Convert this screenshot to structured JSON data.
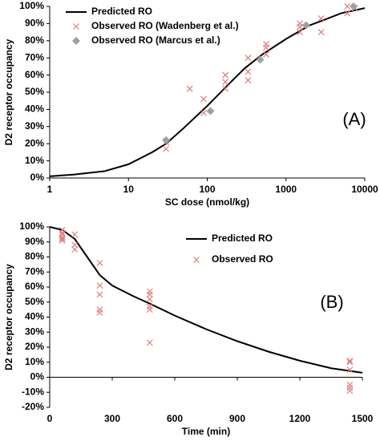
{
  "chart_data": [
    {
      "type": "line",
      "xlog": true,
      "xlabel": "SC dose (nmol/kg)",
      "ylabel": "D2 receptor occupancy",
      "annotation": "(A)",
      "xlim": [
        1,
        10000
      ],
      "xticks": [
        1,
        10,
        100,
        1000,
        10000
      ],
      "ylim": [
        0,
        100
      ],
      "yticks": [
        {
          "value": 0,
          "label": "0%"
        },
        {
          "value": 10,
          "label": "10%"
        },
        {
          "value": 20,
          "label": "20%"
        },
        {
          "value": 30,
          "label": "30%"
        },
        {
          "value": 40,
          "label": "40%"
        },
        {
          "value": 50,
          "label": "50%"
        },
        {
          "value": 60,
          "label": "60%"
        },
        {
          "value": 70,
          "label": "70%"
        },
        {
          "value": 80,
          "label": "80%"
        },
        {
          "value": 90,
          "label": "90%"
        },
        {
          "value": 100,
          "label": "100%"
        }
      ],
      "legend": "top-left",
      "series": [
        {
          "name": "Predicted RO",
          "style": "line",
          "color": "#000000",
          "x": [
            1,
            2,
            5,
            10,
            20,
            30,
            50,
            100,
            200,
            300,
            500,
            1000,
            2000,
            3000,
            5000,
            10000
          ],
          "values": [
            1,
            2,
            4,
            8,
            15,
            20,
            29,
            42,
            56,
            64,
            72,
            81,
            89,
            92,
            96,
            99
          ]
        },
        {
          "name": "Observed RO (Wadenberg et al.)",
          "style": "cross",
          "color": "#e07b7b",
          "x": [
            30,
            30,
            60,
            90,
            90,
            170,
            170,
            170,
            330,
            330,
            330,
            560,
            560,
            560,
            1500,
            1500,
            1500,
            2800,
            2800,
            6000,
            6000,
            7500
          ],
          "values": [
            17,
            21,
            52,
            38,
            46,
            52,
            56,
            60,
            57,
            62,
            70,
            72,
            76,
            78,
            85,
            88,
            90,
            85,
            93,
            96,
            100,
            99
          ]
        },
        {
          "name": "Observed RO (Marcus et al.)",
          "style": "diamond",
          "color": "#a0a0a0",
          "x": [
            30,
            110,
            470,
            1800,
            7200
          ],
          "values": [
            22,
            39,
            69,
            89,
            100
          ]
        }
      ]
    },
    {
      "type": "line",
      "xlog": false,
      "xlabel": "Time  (min)",
      "ylabel": "D2 receptor occupancy",
      "annotation": "(B)",
      "xlim": [
        0,
        1500
      ],
      "xticks": [
        0,
        300,
        600,
        900,
        1200,
        1500
      ],
      "ylim": [
        -20,
        100
      ],
      "yticks": [
        {
          "value": -20,
          "label": "-20%"
        },
        {
          "value": -10,
          "label": "-10%"
        },
        {
          "value": 0,
          "label": "0%"
        },
        {
          "value": 10,
          "label": "10%"
        },
        {
          "value": 20,
          "label": "20%"
        },
        {
          "value": 30,
          "label": "30%"
        },
        {
          "value": 40,
          "label": "40%"
        },
        {
          "value": 50,
          "label": "50%"
        },
        {
          "value": 60,
          "label": "60%"
        },
        {
          "value": 70,
          "label": "70%"
        },
        {
          "value": 80,
          "label": "80%"
        },
        {
          "value": 90,
          "label": "90%"
        },
        {
          "value": 100,
          "label": "100%"
        }
      ],
      "legend": "top-right",
      "series": [
        {
          "name": "Predicted RO",
          "style": "line",
          "color": "#000000",
          "x": [
            0,
            30,
            60,
            120,
            180,
            240,
            300,
            400,
            480,
            600,
            750,
            900,
            1050,
            1200,
            1350,
            1500
          ],
          "values": [
            100,
            99,
            98,
            92,
            80,
            68,
            61,
            54,
            49,
            41,
            32,
            24,
            17,
            11,
            6,
            3
          ]
        },
        {
          "name": "Observed RO",
          "style": "cross",
          "color": "#e07b7b",
          "x": [
            60,
            60,
            60,
            60,
            60,
            60,
            120,
            120,
            120,
            240,
            240,
            240,
            240,
            240,
            480,
            480,
            480,
            480,
            480,
            480,
            1440,
            1440,
            1440,
            1440,
            1440,
            1440
          ],
          "values": [
            98,
            96,
            95,
            93,
            92,
            91,
            95,
            88,
            85,
            76,
            61,
            55,
            45,
            43,
            57,
            55,
            52,
            47,
            45,
            23,
            11,
            10,
            5,
            -5,
            -7,
            -9
          ]
        }
      ]
    }
  ]
}
